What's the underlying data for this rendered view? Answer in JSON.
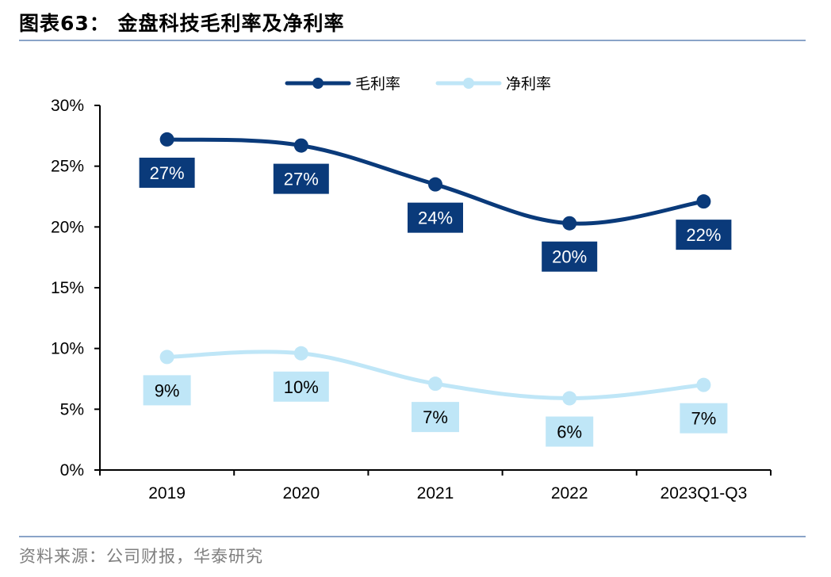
{
  "header": {
    "title": "图表63：  金盘科技毛利率及净利率"
  },
  "footer": {
    "source": "资料来源：公司财报，华泰研究"
  },
  "colors": {
    "gross": "#0a3a7a",
    "net": "#bfe6f7",
    "net_label_text": "#000000",
    "gross_label_text": "#ffffff"
  },
  "chart_data": {
    "type": "line",
    "title": "金盘科技毛利率及净利率",
    "categories": [
      "2019",
      "2020",
      "2021",
      "2022",
      "2023Q1-Q3"
    ],
    "yticks": [
      "0%",
      "5%",
      "10%",
      "15%",
      "20%",
      "25%",
      "30%"
    ],
    "ylim": [
      0,
      30
    ],
    "xlabel": "",
    "ylabel": "",
    "legend_position": "top-center",
    "series": [
      {
        "name": "毛利率",
        "values": [
          27.2,
          26.7,
          23.5,
          20.3,
          22.1
        ],
        "labels": [
          "27%",
          "27%",
          "24%",
          "20%",
          "22%"
        ]
      },
      {
        "name": "净利率",
        "values": [
          9.3,
          9.6,
          7.1,
          5.9,
          7.0
        ],
        "labels": [
          "9%",
          "10%",
          "7%",
          "6%",
          "7%"
        ]
      }
    ]
  }
}
